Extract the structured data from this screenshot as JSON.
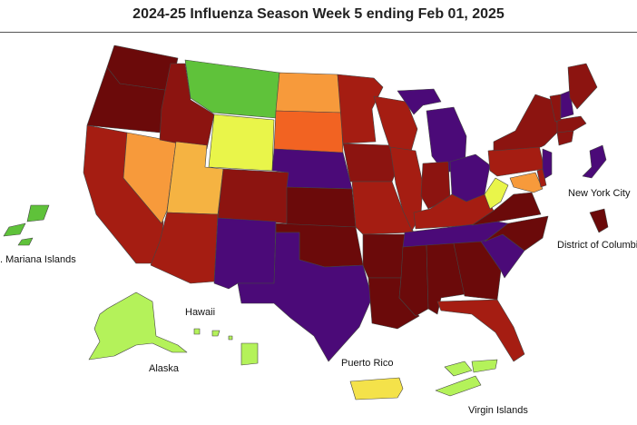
{
  "title": "2024-25 Influenza Season Week 5 ending Feb 01, 2025",
  "labels": {
    "new_york_city": "New York City",
    "district_of_columbia": "District of Columbia",
    "mariana_islands": ". Mariana Islands",
    "hawaii": "Hawaii",
    "alaska": "Alaska",
    "puerto_rico": "Puerto Rico",
    "virgin_islands": "Virgin Islands"
  },
  "colors": {
    "very_high": "#6b0a0a",
    "high_dark": "#8c1410",
    "high": "#a51d12",
    "very_high_purple": "#4b0a78",
    "moderate_orange": "#f26322",
    "moderate": "#f79a3b",
    "moderate_light": "#f5b342",
    "low_yellow": "#f4e24a",
    "yellow_bright": "#e9f54a",
    "minimal_lime": "#b4f25a",
    "minimal_green": "#5fc23a"
  },
  "jurisdictions": [
    {
      "name": "WA",
      "level": "very_high"
    },
    {
      "name": "OR",
      "level": "very_high"
    },
    {
      "name": "CA",
      "level": "high"
    },
    {
      "name": "NV",
      "level": "moderate"
    },
    {
      "name": "ID",
      "level": "high_dark"
    },
    {
      "name": "MT",
      "level": "minimal_green"
    },
    {
      "name": "WY",
      "level": "yellow_bright"
    },
    {
      "name": "UT",
      "level": "moderate_light"
    },
    {
      "name": "AZ",
      "level": "high"
    },
    {
      "name": "CO",
      "level": "high_dark"
    },
    {
      "name": "NM",
      "level": "very_high_purple"
    },
    {
      "name": "ND",
      "level": "moderate"
    },
    {
      "name": "SD",
      "level": "moderate_orange"
    },
    {
      "name": "NE",
      "level": "very_high_purple"
    },
    {
      "name": "KS",
      "level": "very_high"
    },
    {
      "name": "OK",
      "level": "very_high"
    },
    {
      "name": "TX",
      "level": "very_high_purple"
    },
    {
      "name": "MN",
      "level": "high"
    },
    {
      "name": "IA",
      "level": "high_dark"
    },
    {
      "name": "MO",
      "level": "high"
    },
    {
      "name": "AR",
      "level": "very_high"
    },
    {
      "name": "LA",
      "level": "very_high"
    },
    {
      "name": "WI",
      "level": "high"
    },
    {
      "name": "IL",
      "level": "high"
    },
    {
      "name": "MI",
      "level": "very_high_purple"
    },
    {
      "name": "IN",
      "level": "high_dark"
    },
    {
      "name": "OH",
      "level": "very_high_purple"
    },
    {
      "name": "KY",
      "level": "high"
    },
    {
      "name": "TN",
      "level": "very_high_purple"
    },
    {
      "name": "MS",
      "level": "very_high"
    },
    {
      "name": "AL",
      "level": "very_high"
    },
    {
      "name": "GA",
      "level": "very_high"
    },
    {
      "name": "FL",
      "level": "high"
    },
    {
      "name": "SC",
      "level": "very_high_purple"
    },
    {
      "name": "NC",
      "level": "very_high"
    },
    {
      "name": "VA",
      "level": "very_high"
    },
    {
      "name": "WV",
      "level": "yellow_bright"
    },
    {
      "name": "PA",
      "level": "high"
    },
    {
      "name": "NY",
      "level": "high_dark"
    },
    {
      "name": "NJ",
      "level": "very_high_purple"
    },
    {
      "name": "MD",
      "level": "moderate"
    },
    {
      "name": "DE",
      "level": "high"
    },
    {
      "name": "CT",
      "level": "high_dark"
    },
    {
      "name": "MA",
      "level": "high_dark"
    },
    {
      "name": "VT",
      "level": "high_dark"
    },
    {
      "name": "NH",
      "level": "very_high_purple"
    },
    {
      "name": "ME",
      "level": "high_dark"
    },
    {
      "name": "NYC",
      "level": "very_high_purple"
    },
    {
      "name": "DC",
      "level": "very_high"
    },
    {
      "name": "AK",
      "level": "minimal_lime"
    },
    {
      "name": "HI",
      "level": "minimal_lime"
    },
    {
      "name": "PR",
      "level": "low_yellow"
    },
    {
      "name": "VI",
      "level": "minimal_lime"
    },
    {
      "name": "MP",
      "level": "minimal_green"
    }
  ]
}
